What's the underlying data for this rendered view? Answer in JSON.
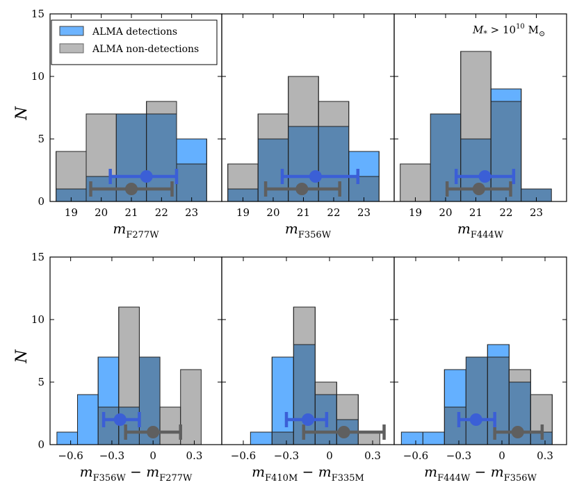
{
  "chart_data": {
    "type": "histogram-grid",
    "legend": {
      "entries": [
        {
          "label": "ALMA detections",
          "color": "#3d9cff"
        },
        {
          "label": "ALMA non-detections",
          "color": "#8c8c8c"
        }
      ],
      "placement": "top-left"
    },
    "annotation": {
      "text_pre": "M",
      "text_sub": "*",
      "text_mid": " > 10",
      "text_sup": "10",
      "text_post": " M",
      "text_sub2": "⊙"
    },
    "colors": {
      "det": "#3d9cff",
      "nondet": "#8c8c8c",
      "overlap": "#5a86b0",
      "det_err": "#3b5fd6",
      "nondet_err": "#5f5f5f"
    },
    "rows": [
      {
        "ylabel": "N",
        "ylim": [
          0,
          15
        ],
        "yticks": [
          0,
          5,
          10,
          15
        ],
        "panels": [
          {
            "xlabel_main": "m",
            "xlabel_sub": "F277W",
            "xlim": [
              18.3,
              24.0
            ],
            "xticks": [
              19,
              20,
              21,
              22,
              23
            ],
            "bin_edges": [
              18.5,
              19.5,
              20.5,
              21.5,
              22.5,
              23.5
            ],
            "detections": [
              1,
              2,
              7,
              7,
              5
            ],
            "non_detections": [
              4,
              7,
              7,
              8,
              3
            ],
            "det_point": {
              "x": 21.5,
              "xerr_low": 1.2,
              "xerr_high": 1.0,
              "y": 2.0
            },
            "nondet_point": {
              "x": 21.0,
              "xerr_low": 1.35,
              "xerr_high": 1.35,
              "y": 1.0
            }
          },
          {
            "xlabel_main": "m",
            "xlabel_sub": "F356W",
            "xlim": [
              18.3,
              24.0
            ],
            "xticks": [
              19,
              20,
              21,
              22,
              23
            ],
            "bin_edges": [
              18.5,
              19.5,
              20.5,
              21.5,
              22.5,
              23.5
            ],
            "detections": [
              1,
              5,
              6,
              6,
              4
            ],
            "non_detections": [
              3,
              7,
              10,
              8,
              2
            ],
            "det_point": {
              "x": 21.4,
              "xerr_low": 1.1,
              "xerr_high": 1.4,
              "y": 2.0
            },
            "nondet_point": {
              "x": 20.95,
              "xerr_low": 1.2,
              "xerr_high": 1.25,
              "y": 1.0
            }
          },
          {
            "xlabel_main": "m",
            "xlabel_sub": "F444W",
            "xlim": [
              18.3,
              24.0
            ],
            "xticks": [
              19,
              20,
              21,
              22,
              23
            ],
            "bin_edges": [
              18.5,
              19.5,
              20.5,
              21.5,
              22.5,
              23.5
            ],
            "detections": [
              0,
              7,
              5,
              9,
              1
            ],
            "non_detections": [
              3,
              7,
              12,
              8,
              1
            ],
            "det_point": {
              "x": 21.3,
              "xerr_low": 0.95,
              "xerr_high": 0.95,
              "y": 2.0
            },
            "nondet_point": {
              "x": 21.1,
              "xerr_low": 1.05,
              "xerr_high": 1.05,
              "y": 1.0
            }
          }
        ]
      },
      {
        "ylabel": "N",
        "ylim": [
          0,
          15
        ],
        "yticks": [
          0,
          5,
          10,
          15
        ],
        "panels": [
          {
            "xlabel_main": "m",
            "xlabel_sub": "F356W",
            "xlabel_minus": " − m",
            "xlabel_sub2": "F277W",
            "xlim": [
              -0.75,
              0.5
            ],
            "xticks": [
              -0.6,
              -0.3,
              0,
              0.3
            ],
            "tick_labels": [
              "−0.6",
              "−0.3",
              "0",
              "0.3"
            ],
            "bin_edges": [
              -0.7,
              -0.55,
              -0.4,
              -0.25,
              -0.1,
              0.05,
              0.2,
              0.35
            ],
            "detections": [
              1,
              4,
              7,
              3,
              7,
              0,
              0
            ],
            "non_detections": [
              0,
              0,
              3,
              11,
              7,
              3,
              6
            ],
            "det_point": {
              "x": -0.24,
              "xerr_low": 0.12,
              "xerr_high": 0.14,
              "y": 2.0
            },
            "nondet_point": {
              "x": 0.0,
              "xerr_low": 0.2,
              "xerr_high": 0.2,
              "y": 1.0
            }
          },
          {
            "xlabel_main": "m",
            "xlabel_sub": "F410M",
            "xlabel_minus": " − m",
            "xlabel_sub2": "F335M",
            "xlim": [
              -0.75,
              0.45
            ],
            "xticks": [
              -0.6,
              -0.3,
              0,
              0.3
            ],
            "tick_labels": [
              "−0.6",
              "−0.3",
              "0",
              "0.3"
            ],
            "bin_edges": [
              -0.55,
              -0.4,
              -0.25,
              -0.1,
              0.05,
              0.2,
              0.35
            ],
            "detections": [
              1,
              7,
              8,
              4,
              2,
              0
            ],
            "non_detections": [
              0,
              1,
              11,
              5,
              4,
              1
            ],
            "det_point": {
              "x": -0.15,
              "xerr_low": 0.15,
              "xerr_high": 0.13,
              "y": 2.0
            },
            "nondet_point": {
              "x": 0.1,
              "xerr_low": 0.28,
              "xerr_high": 0.28,
              "y": 1.0
            }
          },
          {
            "xlabel_main": "m",
            "xlabel_sub": "F444W",
            "xlabel_minus": " − m",
            "xlabel_sub2": "F356W",
            "xlim": [
              -0.75,
              0.45
            ],
            "xticks": [
              -0.6,
              -0.3,
              0,
              0.3
            ],
            "tick_labels": [
              "−0.6",
              "−0.3",
              "0",
              "0.3"
            ],
            "bin_edges": [
              -0.7,
              -0.55,
              -0.4,
              -0.25,
              -0.1,
              0.05,
              0.2,
              0.35
            ],
            "detections": [
              1,
              1,
              6,
              7,
              8,
              5,
              1
            ],
            "non_detections": [
              0,
              0,
              3,
              7,
              7,
              6,
              4
            ],
            "det_point": {
              "x": -0.18,
              "xerr_low": 0.12,
              "xerr_high": 0.13,
              "y": 2.0
            },
            "nondet_point": {
              "x": 0.11,
              "xerr_low": 0.16,
              "xerr_high": 0.17,
              "y": 1.0
            }
          }
        ]
      }
    ]
  }
}
